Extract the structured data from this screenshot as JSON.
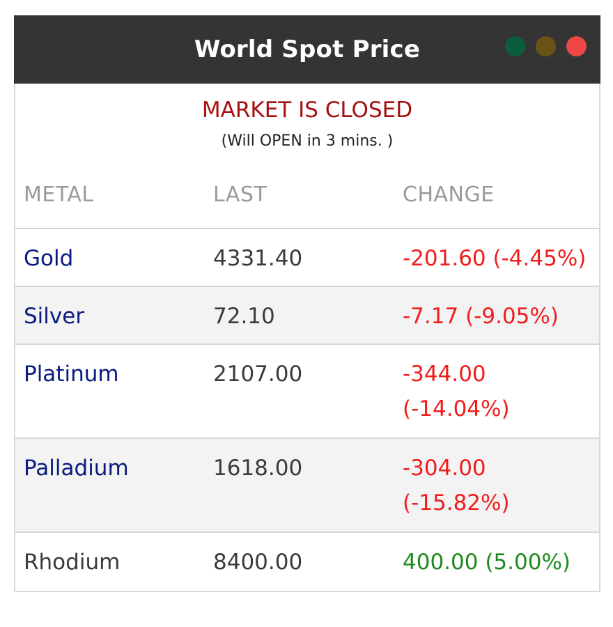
{
  "header": {
    "title": "World Spot Price",
    "dots": [
      {
        "name": "green-dot",
        "color": "#0c5d3c"
      },
      {
        "name": "olive-dot",
        "color": "#6b5318"
      },
      {
        "name": "red-dot",
        "color": "#f04646"
      }
    ]
  },
  "status": {
    "market": "MARKET IS CLOSED",
    "market_color": "#a51010",
    "open_info": "(Will OPEN in 3 mins. )"
  },
  "table": {
    "columns": [
      "METAL",
      "LAST",
      "CHANGE"
    ],
    "rows": [
      {
        "metal": "Gold",
        "last": "4331.40",
        "change": "-201.60 (-4.45%)",
        "direction": "down",
        "linked": true
      },
      {
        "metal": "Silver",
        "last": "72.10",
        "change": "-7.17 (-9.05%)",
        "direction": "down",
        "linked": true
      },
      {
        "metal": "Platinum",
        "last": "2107.00",
        "change": "-344.00 (-14.04%)",
        "direction": "down",
        "linked": true
      },
      {
        "metal": "Palladium",
        "last": "1618.00",
        "change": "-304.00 (-15.82%)",
        "direction": "down",
        "linked": true
      },
      {
        "metal": "Rhodium",
        "last": "8400.00",
        "change": "400.00 (5.00%)",
        "direction": "up",
        "linked": false
      }
    ]
  }
}
